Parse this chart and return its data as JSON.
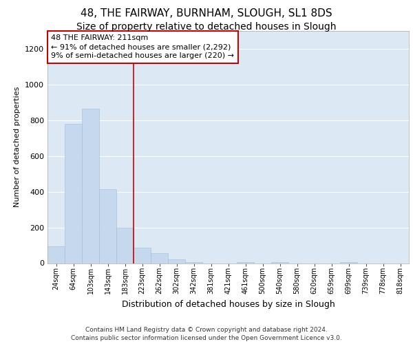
{
  "title1": "48, THE FAIRWAY, BURNHAM, SLOUGH, SL1 8DS",
  "title2": "Size of property relative to detached houses in Slough",
  "xlabel": "Distribution of detached houses by size in Slough",
  "ylabel": "Number of detached properties",
  "footnote": "Contains HM Land Registry data © Crown copyright and database right 2024.\nContains public sector information licensed under the Open Government Licence v3.0.",
  "categories": [
    "24sqm",
    "64sqm",
    "103sqm",
    "143sqm",
    "183sqm",
    "223sqm",
    "262sqm",
    "302sqm",
    "342sqm",
    "381sqm",
    "421sqm",
    "461sqm",
    "500sqm",
    "540sqm",
    "580sqm",
    "620sqm",
    "659sqm",
    "699sqm",
    "739sqm",
    "778sqm",
    "818sqm"
  ],
  "values": [
    95,
    780,
    865,
    415,
    200,
    85,
    55,
    20,
    5,
    0,
    0,
    5,
    0,
    5,
    0,
    0,
    0,
    5,
    0,
    0,
    0
  ],
  "bar_color": "#c5d8ed",
  "bar_edge_color": "#a0bcd8",
  "vline_color": "#cc0000",
  "vline_x": 4.5,
  "annotation_text": "48 THE FAIRWAY: 211sqm\n← 91% of detached houses are smaller (2,292)\n9% of semi-detached houses are larger (220) →",
  "ylim": [
    0,
    1300
  ],
  "yticks": [
    0,
    200,
    400,
    600,
    800,
    1000,
    1200
  ],
  "bg_color": "#dce9f5",
  "grid_color": "#ffffff",
  "title1_fontsize": 11,
  "title2_fontsize": 10,
  "xlabel_fontsize": 9,
  "ylabel_fontsize": 8,
  "footnote_fontsize": 6.5
}
